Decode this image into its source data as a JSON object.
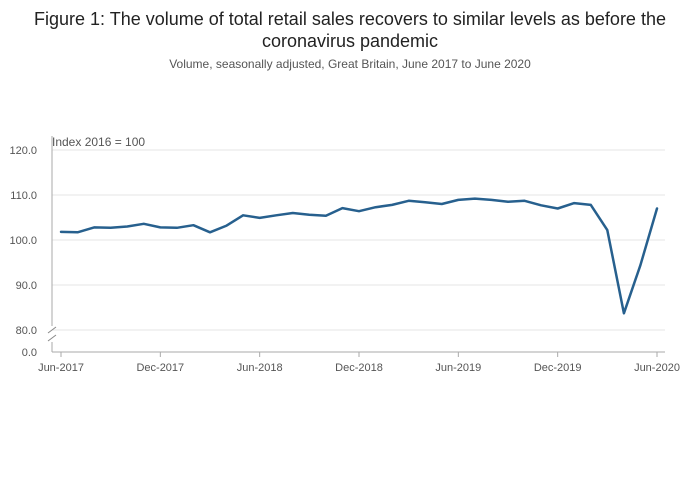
{
  "header": {
    "title": "Figure 1: The volume of total retail sales recovers to similar levels as before the coronavirus pandemic",
    "subtitle": "Volume, seasonally adjusted, Great Britain, June 2017 to June 2020"
  },
  "colors": {
    "line": "#27608e",
    "grid": "#e4e4e4",
    "axis": "#aaaaaa"
  },
  "chart_data": {
    "type": "line",
    "title": "Figure 1: The volume of total retail sales recovers to similar levels as before the coronavirus pandemic",
    "subtitle": "Volume, seasonally adjusted, Great Britain, June 2017 to June 2020",
    "ylabel": "Index 2016 = 100",
    "xlabel": "",
    "axis_break": "between 0.0 and 80.0",
    "y_ticks": [
      0.0,
      80.0,
      90.0,
      100.0,
      110.0,
      120.0
    ],
    "y_tick_labels": [
      "0.0",
      "80.0",
      "90.0",
      "100.0",
      "110.0",
      "120.0"
    ],
    "ylim": [
      80,
      120
    ],
    "x_tick_labels": [
      "Jun-2017",
      "Dec-2017",
      "Jun-2018",
      "Dec-2018",
      "Jun-2019",
      "Dec-2019",
      "Jun-2020"
    ],
    "x_tick_index": [
      0,
      6,
      12,
      18,
      24,
      30,
      36
    ],
    "series": [
      {
        "name": "Volume of total retail sales",
        "values": [
          101.8,
          101.7,
          102.8,
          102.7,
          103.0,
          103.6,
          102.8,
          102.7,
          103.3,
          101.7,
          103.2,
          105.5,
          104.9,
          105.5,
          106.0,
          105.6,
          105.4,
          107.1,
          106.4,
          107.3,
          107.8,
          108.7,
          108.4,
          108.0,
          108.9,
          109.2,
          108.9,
          108.5,
          108.7,
          107.7,
          107.0,
          108.2,
          107.8,
          102.2,
          83.7,
          94.4,
          107.0
        ]
      }
    ]
  }
}
